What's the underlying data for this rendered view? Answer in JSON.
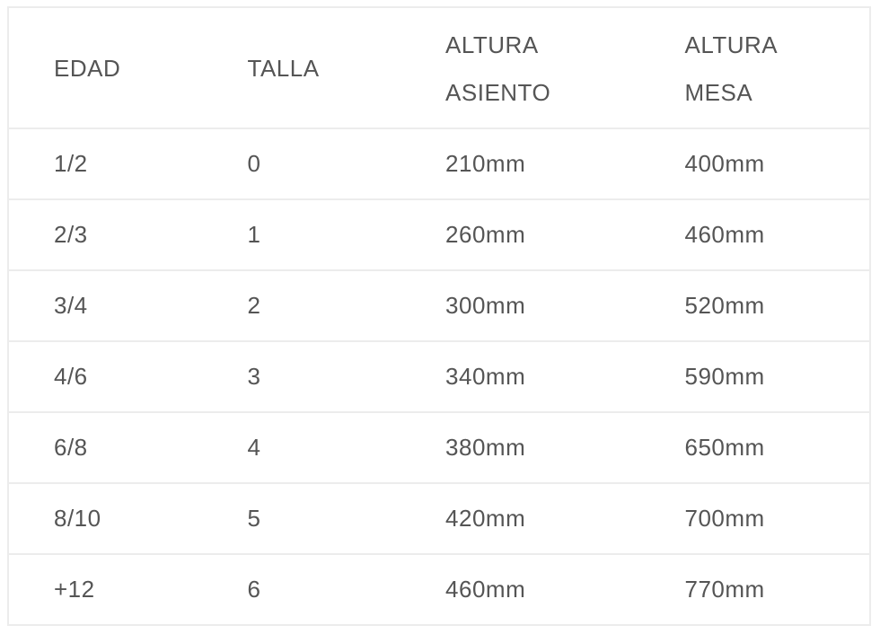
{
  "table": {
    "headers": [
      [
        "EDAD"
      ],
      [
        "TALLA"
      ],
      [
        "ALTURA",
        "ASIENTO"
      ],
      [
        "ALTURA",
        "MESA"
      ]
    ],
    "rows": [
      [
        "1/2",
        "0",
        "210mm",
        "400mm"
      ],
      [
        "2/3",
        "1",
        "260mm",
        "460mm"
      ],
      [
        "3/4",
        "2",
        "300mm",
        "520mm"
      ],
      [
        "4/6",
        "3",
        "340mm",
        "590mm"
      ],
      [
        "6/8",
        "4",
        "380mm",
        "650mm"
      ],
      [
        "8/10",
        "5",
        "420mm",
        "700mm"
      ],
      [
        "+12",
        "6",
        "460mm",
        "770mm"
      ]
    ]
  }
}
